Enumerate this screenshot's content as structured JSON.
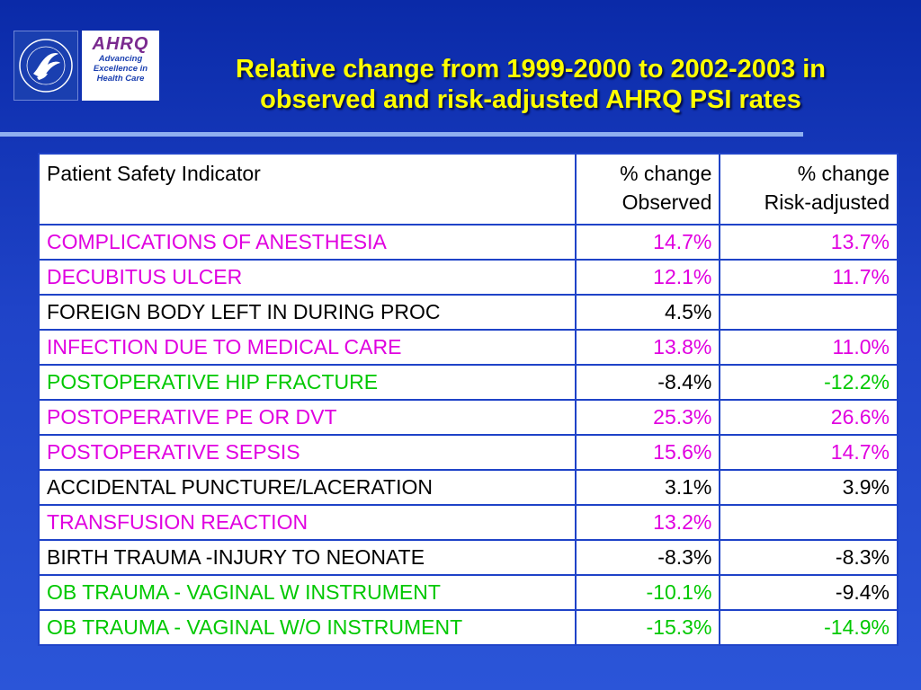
{
  "header": {
    "title_line1": "Relative change from 1999-2000 to 2002-2003 in",
    "title_line2": "observed and risk-adjusted AHRQ PSI rates",
    "logo": {
      "ahrq": "AHRQ",
      "tagline1": "Advancing",
      "tagline2": "Excellence in",
      "tagline3": "Health Care",
      "seal_icon": "hhs-eagle-seal-icon"
    }
  },
  "colors": {
    "background": "#1f43c8",
    "title": "#ffff00",
    "magenta": "#e000e0",
    "green": "#00c800",
    "black": "#000000"
  },
  "chart_data": {
    "type": "table",
    "columns": [
      "Patient Safety Indicator",
      "% change Observed",
      "% change Risk-adjusted"
    ],
    "column_headers": {
      "indicator": "Patient Safety Indicator",
      "observed_line1": "% change",
      "observed_line2": "Observed",
      "risk_line1": "% change",
      "risk_line2": "Risk-adjusted"
    },
    "rows": [
      {
        "indicator": "COMPLICATIONS OF ANESTHESIA",
        "observed": "14.7%",
        "risk_adjusted": "13.7%",
        "label_color": "magenta",
        "observed_color": "magenta",
        "risk_color": "magenta"
      },
      {
        "indicator": "DECUBITUS ULCER",
        "observed": "12.1%",
        "risk_adjusted": "11.7%",
        "label_color": "magenta",
        "observed_color": "magenta",
        "risk_color": "magenta"
      },
      {
        "indicator": "FOREIGN BODY LEFT IN DURING PROC",
        "observed": "4.5%",
        "risk_adjusted": "",
        "label_color": "black",
        "observed_color": "black",
        "risk_color": "black"
      },
      {
        "indicator": "INFECTION DUE TO MEDICAL CARE",
        "observed": "13.8%",
        "risk_adjusted": "11.0%",
        "label_color": "magenta",
        "observed_color": "magenta",
        "risk_color": "magenta"
      },
      {
        "indicator": "POSTOPERATIVE HIP FRACTURE",
        "observed": "-8.4%",
        "risk_adjusted": "-12.2%",
        "label_color": "green",
        "observed_color": "black",
        "risk_color": "green"
      },
      {
        "indicator": "POSTOPERATIVE PE OR DVT",
        "observed": "25.3%",
        "risk_adjusted": "26.6%",
        "label_color": "magenta",
        "observed_color": "magenta",
        "risk_color": "magenta"
      },
      {
        "indicator": "POSTOPERATIVE SEPSIS",
        "observed": "15.6%",
        "risk_adjusted": "14.7%",
        "label_color": "magenta",
        "observed_color": "magenta",
        "risk_color": "magenta"
      },
      {
        "indicator": "ACCIDENTAL PUNCTURE/LACERATION",
        "observed": "3.1%",
        "risk_adjusted": "3.9%",
        "label_color": "black",
        "observed_color": "black",
        "risk_color": "black"
      },
      {
        "indicator": "TRANSFUSION REACTION",
        "observed": "13.2%",
        "risk_adjusted": "",
        "label_color": "magenta",
        "observed_color": "magenta",
        "risk_color": "black"
      },
      {
        "indicator": "BIRTH TRAUMA -INJURY TO NEONATE",
        "observed": "-8.3%",
        "risk_adjusted": "-8.3%",
        "label_color": "black",
        "observed_color": "black",
        "risk_color": "black"
      },
      {
        "indicator": "OB TRAUMA - VAGINAL W INSTRUMENT",
        "observed": "-10.1%",
        "risk_adjusted": "-9.4%",
        "label_color": "green",
        "observed_color": "green",
        "risk_color": "black"
      },
      {
        "indicator": "OB TRAUMA - VAGINAL W/O INSTRUMENT",
        "observed": "-15.3%",
        "risk_adjusted": "-14.9%",
        "label_color": "green",
        "observed_color": "green",
        "risk_color": "green"
      }
    ]
  }
}
